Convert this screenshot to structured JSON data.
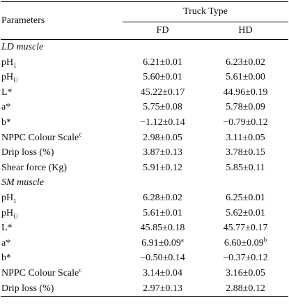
{
  "header": {
    "parameters": "Parameters",
    "group": "Truck Type",
    "columns": [
      "FD",
      "HD"
    ]
  },
  "sections": [
    {
      "title": "LD muscle",
      "rows": [
        {
          "label": "pH",
          "label_sub": "1",
          "values": [
            "6.21±0.01",
            "6.23±0.02"
          ]
        },
        {
          "label": "pH",
          "label_sub": "U",
          "values": [
            "5.60±0.01",
            "5.61±0.00"
          ]
        },
        {
          "label": "L*",
          "values": [
            "45.22±0.17",
            "44.96±0.19"
          ]
        },
        {
          "label": "a*",
          "values": [
            "5.75±0.08",
            "5.78±0.09"
          ]
        },
        {
          "label": "b*",
          "values": [
            "−1.12±0.14",
            "−0.79±0.12"
          ]
        },
        {
          "label": "NPPC Colour Scale",
          "label_sup": "c",
          "values": [
            "2.98±0.05",
            "3.11±0.05"
          ]
        },
        {
          "label": "Drip loss (%)",
          "values": [
            "3.87±0.13",
            "3.78±0.15"
          ]
        },
        {
          "label": "Shear force (Kg)",
          "values": [
            "5.91±0.12",
            "5.85±0.11"
          ]
        }
      ]
    },
    {
      "title": "SM muscle",
      "rows": [
        {
          "label": "pH",
          "label_sub": "1",
          "values": [
            "6.28±0.02",
            "6.25±0.01"
          ]
        },
        {
          "label": "pH",
          "label_sub": "U",
          "values": [
            "5.61±0.01",
            "5.62±0.01"
          ]
        },
        {
          "label": "L*",
          "values": [
            "45.85±0.18",
            "45.77±0.17"
          ]
        },
        {
          "label": "a*",
          "values": [
            "6.91±0.09",
            "6.60±0.09"
          ],
          "value_sups": [
            "a",
            "b"
          ]
        },
        {
          "label": "b*",
          "values": [
            "−0.50±0.14",
            "−0.37±0.12"
          ]
        },
        {
          "label": "NPPC Colour Scale",
          "label_sup": "c",
          "values": [
            "3.14±0.04",
            "3.16±0.05"
          ]
        },
        {
          "label": "Drip loss (%)",
          "values": [
            "2.97±0.13",
            "2.88±0.12"
          ]
        }
      ]
    }
  ]
}
